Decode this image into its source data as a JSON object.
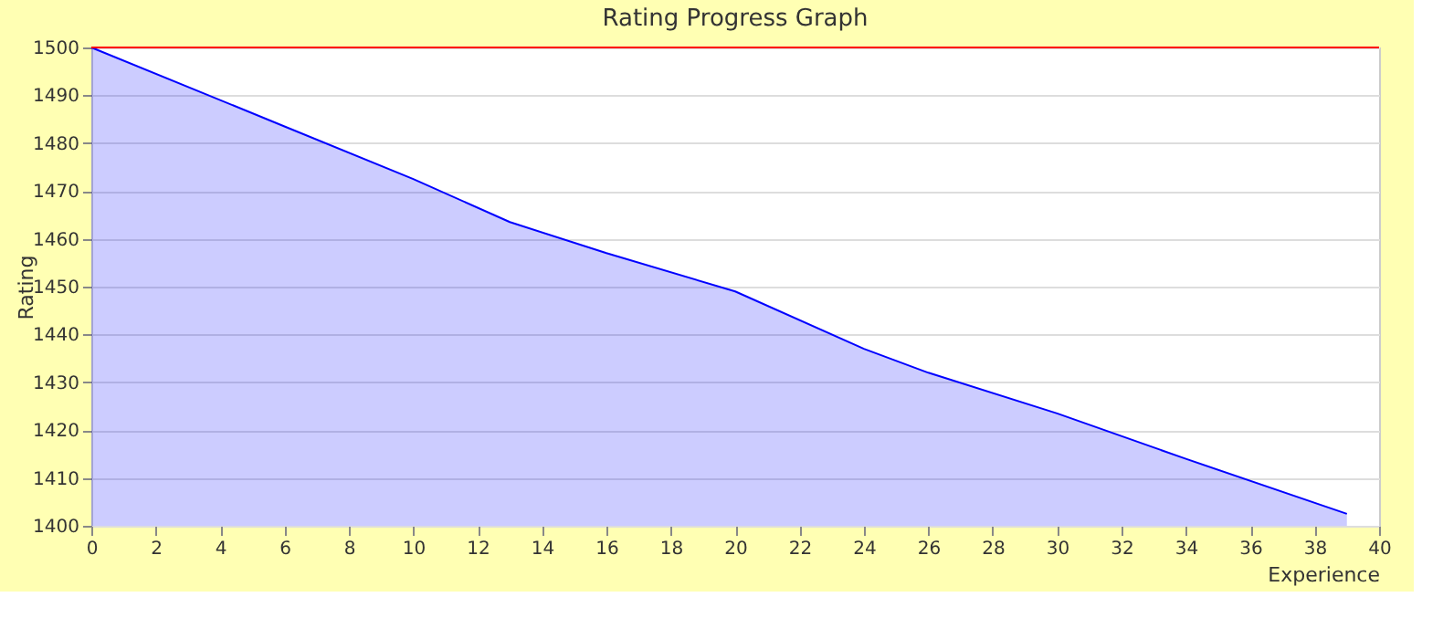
{
  "chart_data": {
    "type": "area",
    "title": "Rating Progress Graph",
    "xlabel": "Experience",
    "ylabel": "Rating",
    "x": [
      0,
      6,
      10,
      13,
      16,
      20,
      24,
      26,
      30,
      34,
      39
    ],
    "series": [
      {
        "color": "#0000ff",
        "values": [
          1500,
          1483.5,
          1472.5,
          1463.5,
          1457,
          1449,
          1437,
          1432,
          1423.5,
          1414,
          1402.5
        ]
      }
    ],
    "xlim": [
      0,
      40
    ],
    "xticks": [
      0,
      2,
      4,
      6,
      8,
      10,
      12,
      14,
      16,
      18,
      20,
      22,
      24,
      26,
      28,
      30,
      32,
      34,
      36,
      38,
      40
    ],
    "ylim": [
      1400,
      1500
    ],
    "yticks": [
      1400,
      1410,
      1420,
      1430,
      1440,
      1450,
      1460,
      1470,
      1480,
      1490,
      1500
    ],
    "grid": "y",
    "ref_lines": [
      {
        "axis": "y",
        "value": 1500,
        "color": "#ff0000"
      }
    ]
  }
}
